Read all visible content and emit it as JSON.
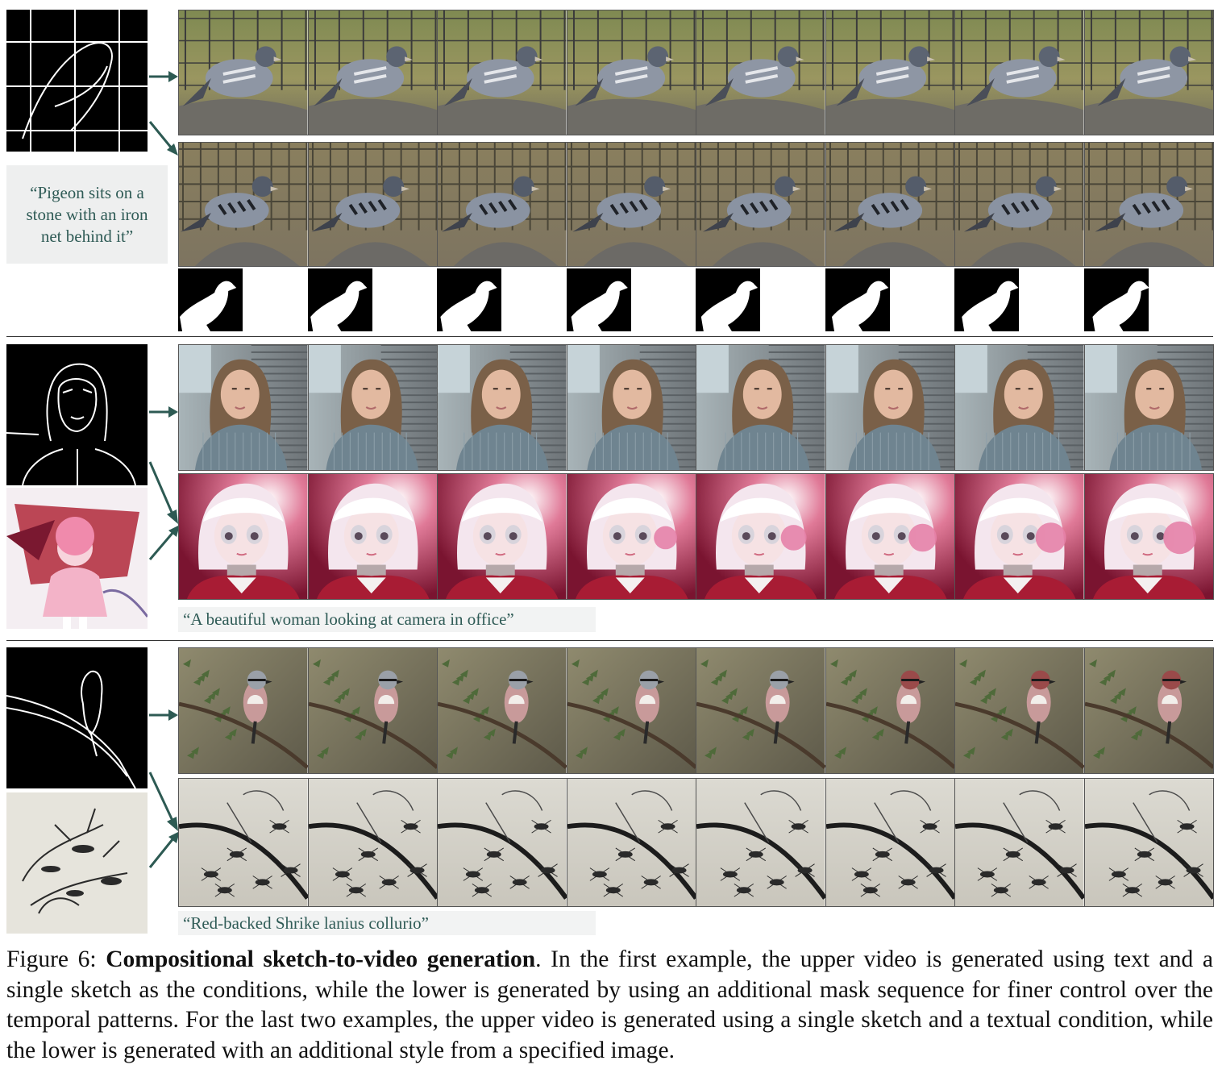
{
  "examples": [
    {
      "prompt": "“Pigeon sits on a stone with an iron net behind it”",
      "rows": [
        "text-and-sketch",
        "text-sketch-and-mask"
      ]
    },
    {
      "prompt": "“A beautiful woman looking at camera in office”",
      "rows": [
        "text-and-sketch",
        "text-sketch-and-style"
      ]
    },
    {
      "prompt": "“Red-backed Shrike lanius collurio”",
      "rows": [
        "text-and-sketch",
        "text-sketch-and-style"
      ]
    }
  ],
  "colors": {
    "arrow": "#2d5a53",
    "prompt_text": "#2f5b56"
  },
  "caption": {
    "label": "Figure 6:",
    "title": "Compositional sketch-to-video generation",
    "body": ". In the first example, the upper video is generated using text and a single sketch as the conditions, while the lower is generated by using an additional mask sequence for finer control over the temporal patterns. For the last two examples, the upper video is generated using a single sketch and a textual condition, while the lower is generated with an additional style from a specified image."
  }
}
